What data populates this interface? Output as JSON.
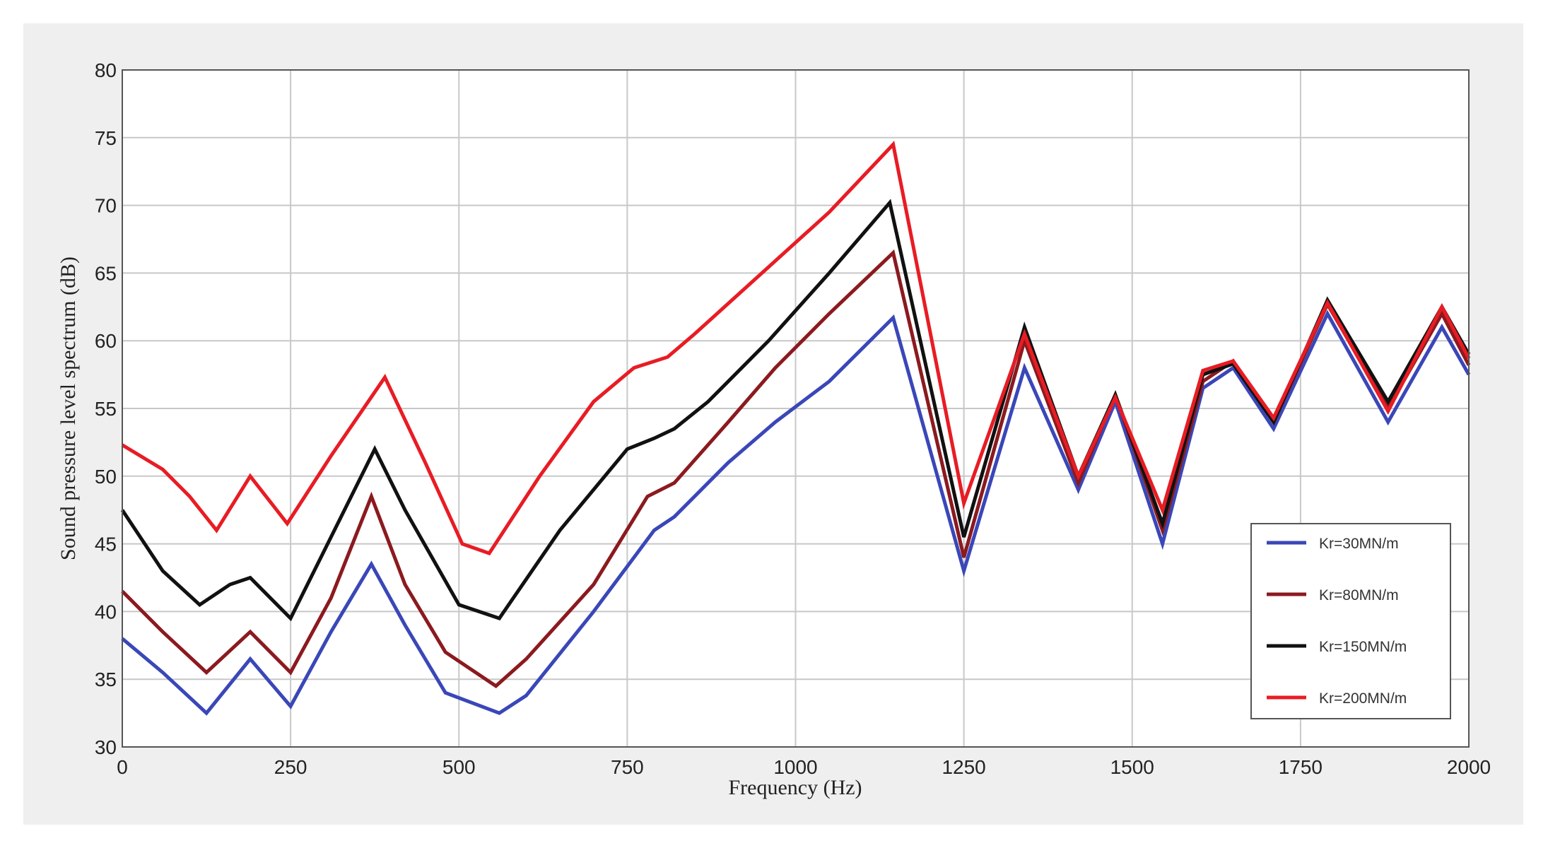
{
  "chart_data": {
    "type": "line",
    "title": "",
    "xlabel": "Frequency (Hz)",
    "ylabel": "Sound pressure level spectrum (dB)",
    "xlim": [
      0,
      2000
    ],
    "ylim": [
      30,
      80
    ],
    "xticks": [
      0,
      250,
      500,
      750,
      1000,
      1250,
      1500,
      1750,
      2000
    ],
    "yticks": [
      30,
      35,
      40,
      45,
      50,
      55,
      60,
      65,
      70,
      75,
      80
    ],
    "grid": true,
    "legend_position": "bottom-right",
    "series": [
      {
        "name": "Kr=30MN/m",
        "color": "#3a47b8",
        "x": [
          0,
          60,
          125,
          190,
          250,
          310,
          370,
          420,
          480,
          560,
          600,
          700,
          790,
          820,
          900,
          970,
          1050,
          1145,
          1250,
          1340,
          1420,
          1475,
          1545,
          1605,
          1650,
          1710,
          1790,
          1880,
          1960,
          2000
        ],
        "y": [
          38,
          35.5,
          32.5,
          36.5,
          33,
          38.5,
          43.5,
          39,
          34,
          32.5,
          33.8,
          40,
          46,
          47,
          51,
          54,
          57,
          61.7,
          43,
          58,
          49,
          55.5,
          45,
          56.5,
          58,
          53.5,
          62,
          54,
          61,
          57.5
        ]
      },
      {
        "name": "Kr=80MN/m",
        "color": "#8b1a1f",
        "x": [
          0,
          60,
          125,
          190,
          250,
          310,
          370,
          420,
          480,
          555,
          600,
          700,
          780,
          820,
          900,
          970,
          1050,
          1145,
          1250,
          1340,
          1420,
          1475,
          1545,
          1605,
          1650,
          1710,
          1790,
          1880,
          1960,
          2000
        ],
        "y": [
          41.5,
          38.5,
          35.5,
          38.5,
          35.5,
          41,
          48.5,
          42,
          37,
          34.5,
          36.5,
          42,
          48.5,
          49.5,
          54,
          58,
          62,
          66.5,
          44,
          60,
          49.5,
          56,
          46,
          57,
          58.5,
          54,
          62.7,
          55,
          62,
          58.2
        ]
      },
      {
        "name": "Kr=150MN/m",
        "color": "#111111",
        "x": [
          0,
          60,
          115,
          160,
          190,
          250,
          310,
          375,
          420,
          500,
          560,
          650,
          750,
          790,
          820,
          870,
          960,
          1050,
          1140,
          1250,
          1340,
          1420,
          1475,
          1545,
          1605,
          1650,
          1710,
          1790,
          1880,
          1960,
          2000
        ],
        "y": [
          47.5,
          43,
          40.5,
          42,
          42.5,
          39.5,
          45.5,
          52,
          47.5,
          40.5,
          39.5,
          46,
          52,
          52.8,
          53.5,
          55.5,
          60,
          65,
          70.2,
          45.5,
          61,
          50,
          56,
          46.5,
          57.5,
          58.3,
          54,
          63,
          55.5,
          62.5,
          59
        ]
      },
      {
        "name": "Kr=200MN/m",
        "color": "#e81c24",
        "x": [
          0,
          60,
          100,
          140,
          190,
          245,
          310,
          390,
          450,
          505,
          545,
          620,
          700,
          760,
          810,
          850,
          950,
          1050,
          1145,
          1250,
          1340,
          1420,
          1475,
          1545,
          1605,
          1650,
          1710,
          1790,
          1880,
          1960,
          2000
        ],
        "y": [
          52.3,
          50.5,
          48.5,
          46,
          50,
          46.5,
          51.5,
          57.3,
          51,
          45,
          44.3,
          50,
          55.5,
          58,
          58.8,
          60.5,
          65,
          69.5,
          74.5,
          48,
          60.5,
          50,
          55.8,
          47.5,
          57.8,
          58.5,
          54.3,
          62.8,
          54.8,
          62.5,
          58.7
        ]
      }
    ]
  }
}
